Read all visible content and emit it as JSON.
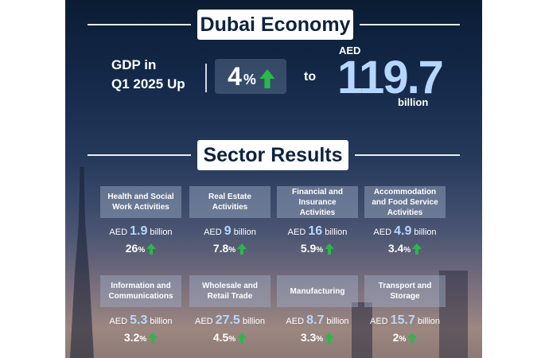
{
  "header": {
    "title": "Dubai Economy"
  },
  "gdp": {
    "label_line1": "GDP in",
    "label_line2": "Q1 2025 Up",
    "growth_value": "4",
    "growth_unit": "%",
    "to": "to",
    "currency": "AED",
    "value": "119.7",
    "unit": "billion"
  },
  "sectors": {
    "title": "Sector Results",
    "currency": "AED",
    "unit": "billion",
    "pct": "%",
    "items": [
      {
        "name": "Health and Social Work Activities",
        "value": "1.9",
        "growth": "26"
      },
      {
        "name": "Real Estate Activities",
        "value": "9",
        "growth": "7.8"
      },
      {
        "name": "Financial and Insurance Activities",
        "value": "16",
        "growth": "5.9"
      },
      {
        "name": "Accommodation and Food Service Activities",
        "value": "4.9",
        "growth": "3.4"
      },
      {
        "name": "Information and Communications",
        "value": "5.3",
        "growth": "3.2"
      },
      {
        "name": "Wholesale and Retail Trade",
        "value": "27.5",
        "growth": "4.5"
      },
      {
        "name": "Manufacturing",
        "value": "8.7",
        "growth": "3.3"
      },
      {
        "name": "Transport and Storage",
        "value": "15.7",
        "growth": "2"
      }
    ]
  },
  "colors": {
    "accent_blue": "#b7d6ff",
    "up_green": "#29b84a",
    "navy": "#0e2240"
  },
  "icons": {
    "growth": "up-arrow-icon"
  }
}
